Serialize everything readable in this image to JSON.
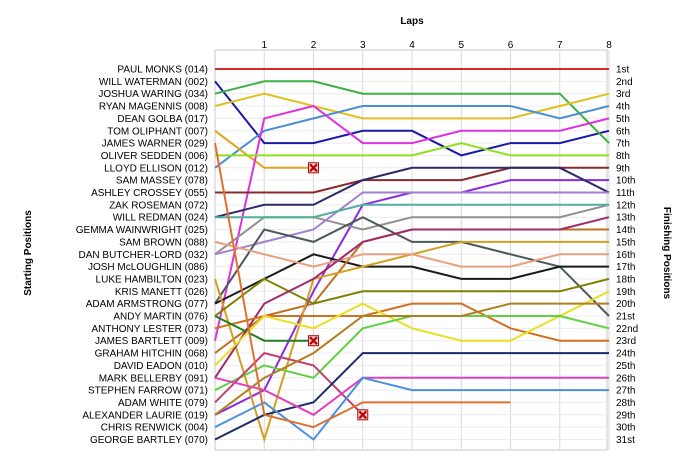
{
  "chart_data": {
    "type": "line",
    "title": "",
    "xlabel": "Laps",
    "ylabel_left": "Starting Positions",
    "ylabel_right": "Finishing Positions",
    "x": [
      0,
      1,
      2,
      3,
      4,
      5,
      6,
      7,
      8
    ],
    "x_tick_labels": [
      "1",
      "2",
      "3",
      "4",
      "5",
      "6",
      "7",
      "8"
    ],
    "y_axis": "position, 1 at top, inverted",
    "ylim": [
      1,
      31
    ],
    "grid": true,
    "finish_labels": [
      "1st",
      "2nd",
      "3rd",
      "4th",
      "5th",
      "6th",
      "7th",
      "8th",
      "9th",
      "10th",
      "11th",
      "12th",
      "13th",
      "14th",
      "15th",
      "16th",
      "17th",
      "18th",
      "19th",
      "20th",
      "21st",
      "22nd",
      "23rd",
      "24th",
      "25th",
      "26th",
      "27th",
      "28th",
      "29th",
      "30th",
      "31st"
    ],
    "series": [
      {
        "name": "PAUL MONKS (014)",
        "color": "#d62828",
        "positions": [
          1,
          1,
          1,
          1,
          1,
          1,
          1,
          1,
          1
        ]
      },
      {
        "name": "WILL WATERMAN (002)",
        "color": "#1a1aa8",
        "positions": [
          2,
          7,
          7,
          6,
          6,
          8,
          7,
          7,
          6
        ]
      },
      {
        "name": "JOSHUA WARING (034)",
        "color": "#3cb043",
        "positions": [
          3,
          2,
          2,
          3,
          3,
          3,
          3,
          3,
          7
        ]
      },
      {
        "name": "RYAN MAGENNIS (008)",
        "color": "#e0c020",
        "positions": [
          4,
          3,
          4,
          5,
          5,
          5,
          5,
          4,
          3
        ]
      },
      {
        "name": "DEAN GOLBA (017)",
        "color": "#4a90d0",
        "positions": [
          9,
          6,
          5,
          4,
          4,
          4,
          4,
          5,
          4
        ]
      },
      {
        "name": "TOM OLIPHANT (007)",
        "color": "#e8a020",
        "positions": [
          6,
          9,
          9,
          null,
          null,
          null,
          null,
          null,
          null
        ],
        "retired": {
          "x": 2,
          "y": 9
        }
      },
      {
        "name": "JAMES WARNER (029)",
        "color": "#e030e0",
        "positions": [
          23,
          5,
          4,
          7,
          7,
          6,
          6,
          6,
          5
        ]
      },
      {
        "name": "OLIVER SEDDEN (006)",
        "color": "#90e020",
        "positions": [
          8,
          8,
          8,
          8,
          8,
          7,
          8,
          8,
          8
        ]
      },
      {
        "name": "LLOYD ELLISON (012)",
        "color": "#8b2a2a",
        "positions": [
          11,
          11,
          11,
          10,
          10,
          10,
          9,
          9,
          9
        ]
      },
      {
        "name": "SAM MASSEY (078)",
        "color": "#8a2be2",
        "positions": [
          29,
          27,
          19,
          12,
          11,
          11,
          10,
          10,
          10
        ]
      },
      {
        "name": "ASHLEY CROSSEY (055)",
        "color": "#2a2a6a",
        "positions": [
          13,
          12,
          12,
          10,
          9,
          9,
          9,
          9,
          11
        ]
      },
      {
        "name": "ZAK ROSEMAN (072)",
        "color": "#909090",
        "positions": [
          16,
          13,
          13,
          14,
          13,
          13,
          13,
          13,
          12
        ]
      },
      {
        "name": "WILL REDMAN (024)",
        "color": "#a080d0",
        "positions": [
          16,
          15,
          14,
          11,
          11,
          11,
          11,
          11,
          11
        ]
      },
      {
        "name": "GEMMA WAINWRIGHT (025)",
        "color": "#50b0a0",
        "positions": [
          13,
          13,
          13,
          12,
          12,
          12,
          12,
          12,
          12
        ]
      },
      {
        "name": "SAM BROWN (088)",
        "color": "#4a5a5a",
        "positions": [
          20,
          14,
          15,
          13,
          15,
          15,
          16,
          17,
          21
        ]
      },
      {
        "name": "DAN BUTCHER-LORD (032)",
        "color": "#1a1a1a",
        "positions": [
          20,
          18,
          16,
          17,
          17,
          18,
          18,
          17,
          17
        ]
      },
      {
        "name": "JOSH McLOUGHLIN (086)",
        "color": "#c07020",
        "positions": [
          24,
          21,
          20,
          15,
          14,
          14,
          14,
          14,
          14
        ]
      },
      {
        "name": "LUKE HAMBILTON (023)",
        "color": "#d4a020",
        "positions": [
          18,
          31,
          18,
          17,
          16,
          15,
          15,
          15,
          15
        ]
      },
      {
        "name": "KRIS MANETT (026)",
        "color": "#e8a080",
        "positions": [
          15,
          16,
          17,
          16,
          16,
          17,
          17,
          16,
          16
        ]
      },
      {
        "name": "ADAM ARMSTRONG (077)",
        "color": "#808000",
        "positions": [
          21,
          18,
          20,
          19,
          19,
          19,
          19,
          19,
          18
        ]
      },
      {
        "name": "ANDY MARTIN (076)",
        "color": "#a02a6a",
        "positions": [
          26,
          20,
          18,
          15,
          14,
          14,
          14,
          14,
          13
        ]
      },
      {
        "name": "ANTHONY LESTER (073)",
        "color": "#d07020",
        "positions": [
          22,
          21,
          21,
          21,
          20,
          20,
          22,
          23,
          23
        ]
      },
      {
        "name": "JAMES BARTLETT (009)",
        "color": "#208020",
        "positions": [
          21,
          23,
          23,
          null,
          null,
          null,
          null,
          null,
          null
        ],
        "retired": {
          "x": 2,
          "y": 23
        }
      },
      {
        "name": "GRAHAM HITCHIN (068)",
        "color": "#e8e020",
        "positions": [
          25,
          21,
          22,
          20,
          22,
          23,
          23,
          21,
          19
        ]
      },
      {
        "name": "DAVID EADON (010)",
        "color": "#60d040",
        "positions": [
          27,
          25,
          26,
          22,
          21,
          21,
          21,
          21,
          22
        ]
      },
      {
        "name": "MARK BELLERBY (091)",
        "color": "#c04070",
        "positions": [
          28,
          24,
          25,
          29,
          null,
          null,
          null,
          null,
          null
        ],
        "retired": {
          "x": 3,
          "y": 29
        }
      },
      {
        "name": "STEPHEN FARROW (071)",
        "color": "#b08020",
        "positions": [
          29,
          26,
          24,
          21,
          21,
          21,
          20,
          20,
          20
        ]
      },
      {
        "name": "ADAM WHITE (079)",
        "color": "#1e2a6a",
        "positions": [
          31,
          29,
          28,
          24,
          24,
          24,
          24,
          24,
          24
        ]
      },
      {
        "name": "ALEXANDER LAURIE (019)",
        "color": "#e040c0",
        "positions": [
          26,
          27,
          29,
          26,
          26,
          26,
          26,
          26,
          26
        ]
      },
      {
        "name": "CHRIS RENWICK (004)",
        "color": "#4a90e0",
        "positions": [
          30,
          28,
          31,
          26,
          27,
          27,
          27,
          27,
          27
        ]
      },
      {
        "name": "GEORGE BARTLEY (070)",
        "color": "#e07030",
        "positions": [
          7,
          29,
          30,
          28,
          28,
          28,
          28,
          null,
          null
        ]
      }
    ]
  }
}
